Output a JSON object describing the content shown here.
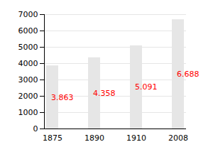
{
  "chart_data": {
    "type": "bar",
    "categories": [
      "1875",
      "1890",
      "1910",
      "2008"
    ],
    "values": [
      3863,
      4358,
      5091,
      6688
    ],
    "value_labels": [
      "3.863",
      "4.358",
      "5.091",
      "6.688"
    ],
    "color": "#e6e6e6",
    "ylim": [
      0,
      7000
    ],
    "yticks": [
      0,
      1000,
      2000,
      3000,
      4000,
      5000,
      6000,
      7000
    ],
    "grid": true,
    "data_labels": true
  }
}
